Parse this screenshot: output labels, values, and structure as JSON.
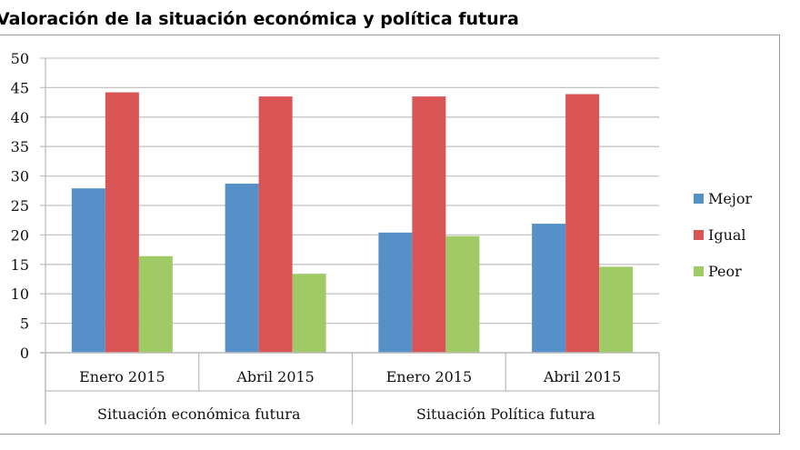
{
  "chart_data": {
    "type": "bar",
    "title": "Valoración de la situación económica y política futura",
    "groups": [
      {
        "label": "Situación económica futura",
        "categories": [
          "Enero 2015",
          "Abril 2015"
        ]
      },
      {
        "label": "Situación Política futura",
        "categories": [
          "Enero 2015",
          "Abril 2015"
        ]
      }
    ],
    "categories": [
      "Enero 2015",
      "Abril 2015",
      "Enero 2015",
      "Abril 2015"
    ],
    "series": [
      {
        "name": "Mejor",
        "color": "#5690c9",
        "values": [
          27.9,
          28.7,
          20.4,
          21.9
        ]
      },
      {
        "name": "Igual",
        "color": "#d95555",
        "values": [
          44.2,
          43.5,
          43.5,
          43.9
        ]
      },
      {
        "name": "Peor",
        "color": "#a0ca66",
        "values": [
          16.4,
          13.4,
          19.8,
          14.6
        ]
      }
    ],
    "ylim": [
      0,
      50
    ],
    "yticks": [
      "0",
      "5",
      "10",
      "15",
      "20",
      "25",
      "30",
      "35",
      "40",
      "45",
      "50"
    ],
    "grid": true,
    "legend": "right",
    "xlabel": "",
    "ylabel": ""
  }
}
